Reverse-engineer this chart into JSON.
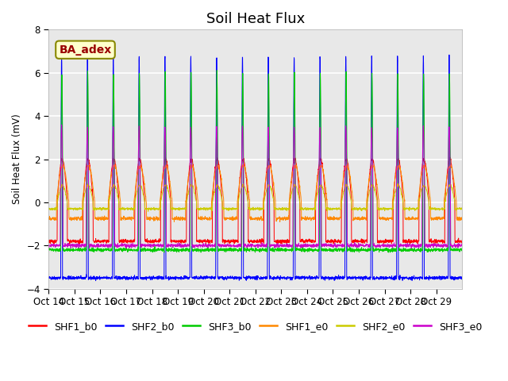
{
  "title": "Soil Heat Flux",
  "ylabel": "Soil Heat Flux (mV)",
  "ylim": [
    -4,
    8
  ],
  "yticks": [
    -4,
    -2,
    0,
    2,
    4,
    6,
    8
  ],
  "x_labels": [
    "Oct 14",
    "Oct 15",
    "Oct 16",
    "Oct 17",
    "Oct 18",
    "Oct 19",
    "Oct 20",
    "Oct 21",
    "Oct 22",
    "Oct 23",
    "Oct 24",
    "Oct 25",
    "Oct 26",
    "Oct 27",
    "Oct 28",
    "Oct 29"
  ],
  "n_days": 16,
  "series_names": [
    "SHF1_b0",
    "SHF2_b0",
    "SHF3_b0",
    "SHF1_e0",
    "SHF2_e0",
    "SHF3_e0"
  ],
  "colors": [
    "#ff0000",
    "#0000ff",
    "#00cc00",
    "#ff8800",
    "#cccc00",
    "#cc00cc"
  ],
  "annotation_text": "BA_adex",
  "annotation_color": "#990000",
  "annotation_bg": "#ffffcc",
  "annotation_border": "#888800",
  "bg_color": "#e8e8e8",
  "grid_color": "#ffffff",
  "title_fontsize": 13,
  "label_fontsize": 8.5,
  "legend_fontsize": 9
}
